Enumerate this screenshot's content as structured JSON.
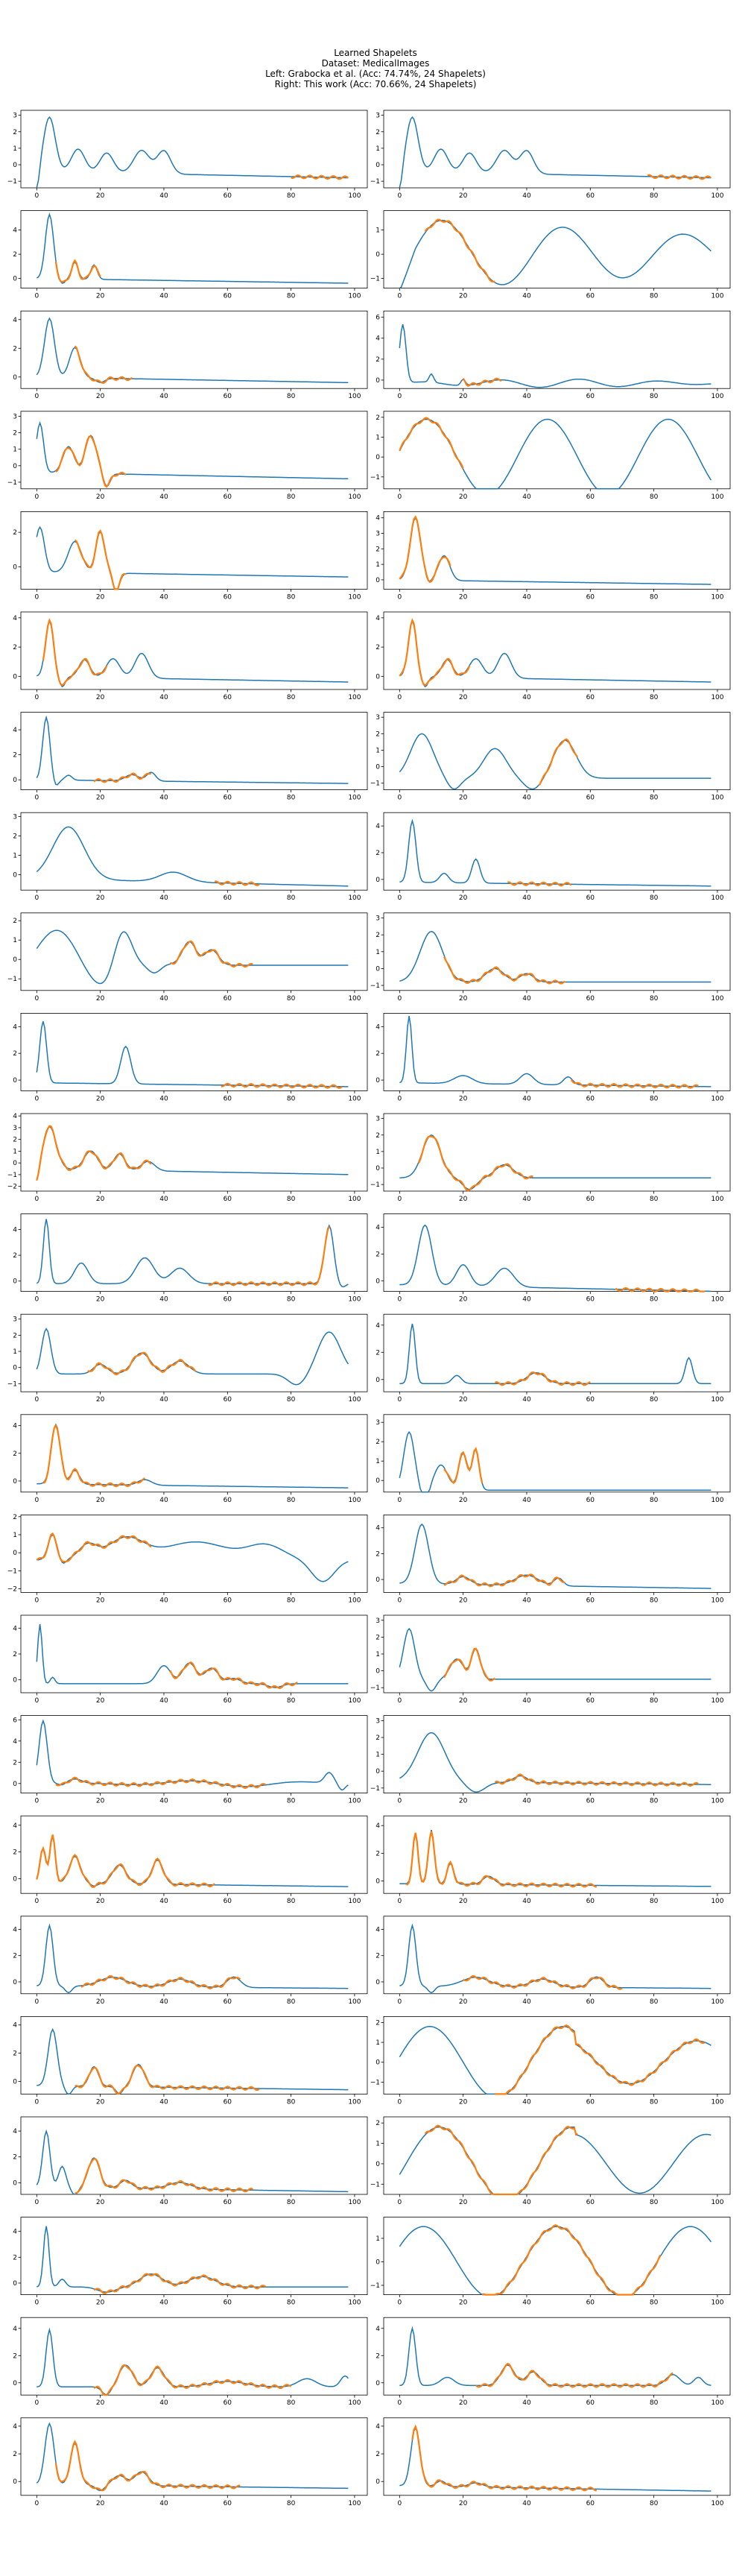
{
  "figure": {
    "title_lines": [
      "Learned Shapelets",
      "Dataset: MedicalImages",
      "Left: Grabocka et al. (Acc: 74.74%, 24 Shapelets)",
      "Right: This work (Acc: 70.66%, 24 Shapelets)"
    ]
  },
  "colors": {
    "series": "#1f77b4",
    "shapelet": "#ff7f0e",
    "axis": "#000000"
  },
  "chart_data": {
    "type": "line",
    "layout": "grid",
    "grid_rows": 24,
    "grid_cols": 2,
    "xlim": [
      -5,
      104
    ],
    "x_ticks": [
      0,
      20,
      40,
      60,
      80,
      100
    ],
    "grid": false,
    "series_names": [
      "time series",
      "learned shapelet"
    ],
    "rows": [
      {
        "left": {
          "yticks": [
            -1,
            0,
            1,
            2,
            3
          ],
          "ylim": [
            -1.4,
            3.3
          ],
          "shape": "s0",
          "shapelet": {
            "start": 80,
            "len": 18
          }
        },
        "right": {
          "yticks": [
            -1,
            0,
            1,
            2,
            3
          ],
          "ylim": [
            -1.4,
            3.3
          ],
          "shape": "s0",
          "shapelet": {
            "start": 78,
            "len": 20
          }
        }
      },
      {
        "left": {
          "yticks": [
            0,
            2,
            4
          ],
          "ylim": [
            -0.8,
            5.6
          ],
          "shape": "s1",
          "shapelet": {
            "start": 6,
            "len": 14
          }
        },
        "right": {
          "yticks": [
            -1,
            0,
            1
          ],
          "ylim": [
            -1.4,
            1.8
          ],
          "shape": "wave",
          "shapelet": {
            "start": 8,
            "len": 22
          }
        }
      },
      {
        "left": {
          "yticks": [
            0,
            2,
            4
          ],
          "ylim": [
            -0.8,
            4.6
          ],
          "shape": "s2",
          "shapelet": {
            "start": 12,
            "len": 18
          }
        },
        "right": {
          "yticks": [
            0,
            2,
            4,
            6
          ],
          "ylim": [
            -0.8,
            6.6
          ],
          "shape": "s3",
          "shapelet": {
            "start": 20,
            "len": 12
          }
        }
      },
      {
        "left": {
          "yticks": [
            -1,
            0,
            1,
            2,
            3
          ],
          "ylim": [
            -1.4,
            3.3
          ],
          "shape": "s4",
          "shapelet": {
            "start": 6,
            "len": 22
          }
        },
        "right": {
          "yticks": [
            -1,
            0,
            1,
            2
          ],
          "ylim": [
            -1.6,
            2.3
          ],
          "shape": "wave2",
          "shapelet": {
            "start": 0,
            "len": 20
          }
        }
      },
      {
        "left": {
          "yticks": [
            0,
            2
          ],
          "ylim": [
            -1.3,
            3.2
          ],
          "shape": "s5",
          "shapelet": {
            "start": 12,
            "len": 16
          }
        },
        "right": {
          "yticks": [
            0,
            1,
            2,
            3,
            4
          ],
          "ylim": [
            -0.6,
            4.4
          ],
          "shape": "s6",
          "shapelet": {
            "start": 0,
            "len": 16
          }
        }
      },
      {
        "left": {
          "yticks": [
            0,
            2,
            4
          ],
          "ylim": [
            -0.9,
            4.4
          ],
          "shape": "s7",
          "shapelet": {
            "start": 2,
            "len": 20
          }
        },
        "right": {
          "yticks": [
            0,
            2,
            4
          ],
          "ylim": [
            -0.9,
            4.4
          ],
          "shape": "s7",
          "shapelet": {
            "start": 0,
            "len": 22
          }
        }
      },
      {
        "left": {
          "yticks": [
            0,
            2,
            4
          ],
          "ylim": [
            -0.8,
            5.4
          ],
          "shape": "s8",
          "shapelet": {
            "start": 18,
            "len": 18
          }
        },
        "right": {
          "yticks": [
            -1,
            0,
            1,
            2,
            3
          ],
          "ylim": [
            -1.4,
            3.3
          ],
          "shape": "s9",
          "shapelet": {
            "start": 44,
            "len": 12
          }
        }
      },
      {
        "left": {
          "yticks": [
            0,
            1,
            2,
            3
          ],
          "ylim": [
            -0.8,
            3.2
          ],
          "shape": "s10",
          "shapelet": {
            "start": 56,
            "len": 14
          }
        },
        "right": {
          "yticks": [
            0,
            2,
            4
          ],
          "ylim": [
            -0.8,
            5.0
          ],
          "shape": "s11",
          "shapelet": {
            "start": 34,
            "len": 20
          }
        }
      },
      {
        "left": {
          "yticks": [
            -1,
            0,
            1,
            2
          ],
          "ylim": [
            -1.6,
            2.4
          ],
          "shape": "s12",
          "shapelet": {
            "start": 42,
            "len": 26
          }
        },
        "right": {
          "yticks": [
            -1,
            0,
            1,
            2,
            3
          ],
          "ylim": [
            -1.3,
            3.3
          ],
          "shape": "s13",
          "shapelet": {
            "start": 14,
            "len": 38
          }
        }
      },
      {
        "left": {
          "yticks": [
            0,
            2,
            4
          ],
          "ylim": [
            -0.8,
            5.0
          ],
          "shape": "s14",
          "shapelet": {
            "start": 58,
            "len": 38
          }
        },
        "right": {
          "yticks": [
            0,
            2,
            4
          ],
          "ylim": [
            -0.8,
            5.0
          ],
          "shape": "s15",
          "shapelet": {
            "start": 54,
            "len": 40
          }
        }
      },
      {
        "left": {
          "yticks": [
            -2,
            -1,
            0,
            1,
            2,
            3,
            4
          ],
          "ylim": [
            -2.4,
            4.2
          ],
          "shape": "s16",
          "shapelet": {
            "start": 0,
            "len": 36
          }
        },
        "right": {
          "yticks": [
            -1,
            0,
            1,
            2,
            3
          ],
          "ylim": [
            -1.4,
            3.3
          ],
          "shape": "s17",
          "shapelet": {
            "start": 6,
            "len": 36
          }
        }
      },
      {
        "left": {
          "yticks": [
            0,
            2,
            4
          ],
          "ylim": [
            -0.8,
            5.2
          ],
          "shape": "s18",
          "shapelet": {
            "start": 54,
            "len": 38
          }
        },
        "right": {
          "yticks": [
            0,
            2,
            4
          ],
          "ylim": [
            -0.8,
            5.0
          ],
          "shape": "s19",
          "shapelet": {
            "start": 68,
            "len": 28
          }
        }
      },
      {
        "left": {
          "yticks": [
            -1,
            0,
            1,
            2,
            3
          ],
          "ylim": [
            -1.5,
            3.3
          ],
          "shape": "s20",
          "shapelet": {
            "start": 16,
            "len": 34
          }
        },
        "right": {
          "yticks": [
            0,
            2,
            4
          ],
          "ylim": [
            -0.9,
            4.8
          ],
          "shape": "s21",
          "shapelet": {
            "start": 30,
            "len": 30
          }
        }
      },
      {
        "left": {
          "yticks": [
            0,
            2,
            4
          ],
          "ylim": [
            -0.8,
            4.8
          ],
          "shape": "s22",
          "shapelet": {
            "start": 2,
            "len": 32
          }
        },
        "right": {
          "yticks": [
            0,
            1,
            2,
            3
          ],
          "ylim": [
            -0.6,
            3.4
          ],
          "shape": "s23",
          "shapelet": {
            "start": 14,
            "len": 12
          }
        }
      },
      {
        "left": {
          "yticks": [
            -2,
            -1,
            0,
            1,
            2
          ],
          "ylim": [
            -2.2,
            2.1
          ],
          "shape": "s24",
          "shapelet": {
            "start": 0,
            "len": 36
          }
        },
        "right": {
          "yticks": [
            0,
            2,
            4
          ],
          "ylim": [
            -1.0,
            5.0
          ],
          "shape": "s25",
          "shapelet": {
            "start": 14,
            "len": 38
          }
        }
      },
      {
        "left": {
          "yticks": [
            0,
            2,
            4
          ],
          "ylim": [
            -1.0,
            5.0
          ],
          "shape": "s26",
          "shapelet": {
            "start": 42,
            "len": 40
          }
        },
        "right": {
          "yticks": [
            -1,
            0,
            1,
            2,
            3
          ],
          "ylim": [
            -1.3,
            3.3
          ],
          "shape": "s27",
          "shapelet": {
            "start": 14,
            "len": 16
          }
        }
      },
      {
        "left": {
          "yticks": [
            0,
            2,
            4,
            6
          ],
          "ylim": [
            -0.9,
            6.4
          ],
          "shape": "s28",
          "shapelet": {
            "start": 6,
            "len": 66
          }
        },
        "right": {
          "yticks": [
            -1,
            0,
            1,
            2,
            3
          ],
          "ylim": [
            -1.3,
            3.3
          ],
          "shape": "s29",
          "shapelet": {
            "start": 30,
            "len": 64
          }
        }
      },
      {
        "left": {
          "yticks": [
            0,
            2,
            4
          ],
          "ylim": [
            -1.1,
            4.7
          ],
          "shape": "s30",
          "shapelet": {
            "start": 0,
            "len": 56
          }
        },
        "right": {
          "yticks": [
            0,
            2,
            4
          ],
          "ylim": [
            -0.9,
            4.7
          ],
          "shape": "s31",
          "shapelet": {
            "start": 2,
            "len": 60
          }
        }
      },
      {
        "left": {
          "yticks": [
            0,
            2,
            4
          ],
          "ylim": [
            -0.9,
            5.0
          ],
          "shape": "s32",
          "shapelet": {
            "start": 14,
            "len": 50
          }
        },
        "right": {
          "yticks": [
            0,
            2,
            4
          ],
          "ylim": [
            -0.9,
            5.0
          ],
          "shape": "s32",
          "shapelet": {
            "start": 20,
            "len": 50
          }
        }
      },
      {
        "left": {
          "yticks": [
            0,
            2,
            4
          ],
          "ylim": [
            -0.9,
            4.6
          ],
          "shape": "s33",
          "shapelet": {
            "start": 12,
            "len": 58
          }
        },
        "right": {
          "yticks": [
            -1,
            0,
            1,
            2
          ],
          "ylim": [
            -1.6,
            2.3
          ],
          "shape": "wave3",
          "shapelet": {
            "start": 30,
            "len": 66
          }
        }
      },
      {
        "left": {
          "yticks": [
            0,
            2,
            4
          ],
          "ylim": [
            -0.9,
            5.1
          ],
          "shape": "s34",
          "shapelet": {
            "start": 12,
            "len": 56
          }
        },
        "right": {
          "yticks": [
            -1,
            0,
            1,
            2
          ],
          "ylim": [
            -1.5,
            2.3
          ],
          "shape": "wave4",
          "shapelet": {
            "start": 8,
            "len": 48
          }
        }
      },
      {
        "left": {
          "yticks": [
            0,
            2,
            4
          ],
          "ylim": [
            -0.9,
            5.1
          ],
          "shape": "s35",
          "shapelet": {
            "start": 18,
            "len": 54
          }
        },
        "right": {
          "yticks": [
            -1,
            0,
            1
          ],
          "ylim": [
            -1.4,
            1.9
          ],
          "shape": "wave5",
          "shapelet": {
            "start": 26,
            "len": 56
          }
        }
      },
      {
        "left": {
          "yticks": [
            0,
            2,
            4
          ],
          "ylim": [
            -0.9,
            4.8
          ],
          "shape": "s36",
          "shapelet": {
            "start": 18,
            "len": 62
          }
        },
        "right": {
          "yticks": [
            0,
            2,
            4
          ],
          "ylim": [
            -0.9,
            4.8
          ],
          "shape": "s37",
          "shapelet": {
            "start": 24,
            "len": 62
          }
        }
      },
      {
        "left": {
          "yticks": [
            0,
            2,
            4
          ],
          "ylim": [
            -1.0,
            4.6
          ],
          "shape": "s38",
          "shapelet": {
            "start": 6,
            "len": 58
          }
        },
        "right": {
          "yticks": [
            0,
            2,
            4
          ],
          "ylim": [
            -1.0,
            4.6
          ],
          "shape": "s39",
          "shapelet": {
            "start": 4,
            "len": 58
          }
        }
      }
    ]
  }
}
